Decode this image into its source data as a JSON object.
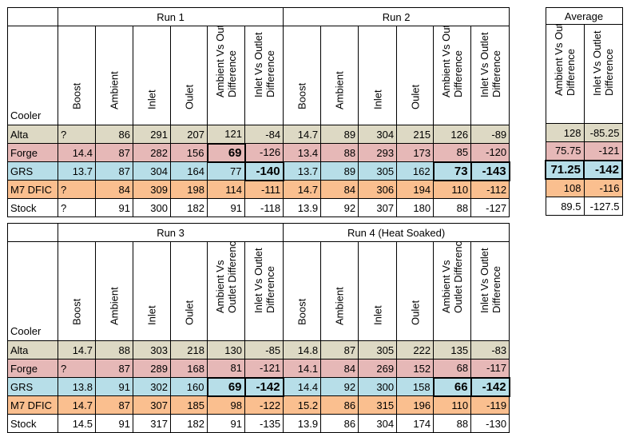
{
  "col_headers": {
    "cooler": "Cooler",
    "boost": "Boost",
    "ambient": "Ambient",
    "inlet": "Inlet",
    "outlet": "Oulet",
    "avo_top": [
      "Ambient Vs Outlet",
      "Difference"
    ],
    "avo_bottom": [
      "Ambient Vs",
      "Outlet Difference"
    ],
    "ivo": [
      "Inlet Vs Outlet",
      "Difference"
    ]
  },
  "top": {
    "run1_title": "Run 1",
    "run2_title": "Run 2",
    "avg_title": "Average",
    "rows": [
      {
        "cooler": "Alta",
        "r1": [
          "?",
          "86",
          "291",
          "207",
          "121",
          "-84"
        ],
        "r2": [
          "14.7",
          "89",
          "304",
          "215",
          "126",
          "-89"
        ],
        "avg": [
          "128",
          "-85.25"
        ]
      },
      {
        "cooler": "Forge",
        "r1": [
          "14.4",
          "87",
          "282",
          "156",
          "69",
          "-126"
        ],
        "r2": [
          "13.4",
          "88",
          "293",
          "173",
          "85",
          "-120"
        ],
        "avg": [
          "75.75",
          "-121"
        ]
      },
      {
        "cooler": "GRS",
        "r1": [
          "13.7",
          "87",
          "304",
          "164",
          "77",
          "-140"
        ],
        "r2": [
          "13.7",
          "89",
          "305",
          "162",
          "73",
          "-143"
        ],
        "avg": [
          "71.25",
          "-142"
        ]
      },
      {
        "cooler": "M7 DFIC",
        "r1": [
          "?",
          "84",
          "309",
          "198",
          "114",
          "-111"
        ],
        "r2": [
          "14.7",
          "84",
          "306",
          "194",
          "110",
          "-112"
        ],
        "avg": [
          "108",
          "-116"
        ]
      },
      {
        "cooler": "Stock",
        "r1": [
          "?",
          "91",
          "300",
          "182",
          "91",
          "-118"
        ],
        "r2": [
          "13.9",
          "92",
          "307",
          "180",
          "88",
          "-127"
        ],
        "avg": [
          "89.5",
          "-127.5"
        ]
      }
    ]
  },
  "bottom": {
    "run3_title": "Run 3",
    "run4_title": "Run 4 (Heat Soaked)",
    "rows": [
      {
        "cooler": "Alta",
        "r3": [
          "14.7",
          "88",
          "303",
          "218",
          "130",
          "-85"
        ],
        "r4": [
          "14.8",
          "87",
          "305",
          "222",
          "135",
          "-83"
        ]
      },
      {
        "cooler": "Forge",
        "r3": [
          "?",
          "87",
          "289",
          "168",
          "81",
          "-121"
        ],
        "r4": [
          "14.1",
          "84",
          "269",
          "152",
          "68",
          "-117"
        ]
      },
      {
        "cooler": "GRS",
        "r3": [
          "13.8",
          "91",
          "302",
          "160",
          "69",
          "-142"
        ],
        "r4": [
          "14.4",
          "92",
          "300",
          "158",
          "66",
          "-142"
        ]
      },
      {
        "cooler": "M7 DFIC",
        "r3": [
          "14.7",
          "87",
          "307",
          "185",
          "98",
          "-122"
        ],
        "r4": [
          "15.2",
          "86",
          "315",
          "196",
          "110",
          "-119"
        ]
      },
      {
        "cooler": "Stock",
        "r3": [
          "14.5",
          "91",
          "317",
          "182",
          "91",
          "-135"
        ],
        "r4": [
          "13.9",
          "86",
          "304",
          "174",
          "88",
          "-130"
        ]
      }
    ]
  }
}
